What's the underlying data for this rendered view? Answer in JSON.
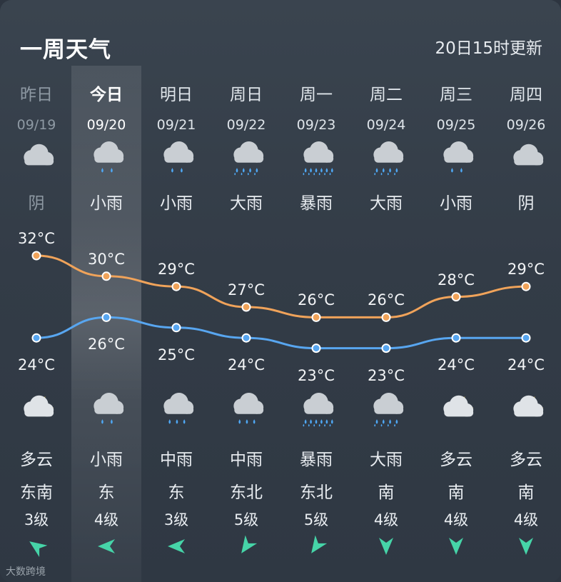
{
  "header": {
    "title": "一周天气",
    "update_time": "20日15时更新"
  },
  "days": [
    {
      "name": "昨日",
      "date": "09/19",
      "day_icon": "cloud-icon",
      "day_cond": "阴",
      "high": "32°C",
      "low": "24°C",
      "night_icon": "cloud-moon-icon",
      "night_cond": "多云",
      "wind_dir": "东南",
      "wind_level": "3级",
      "wind_arrow": "wind-arrow-southeast-icon"
    },
    {
      "name": "今日",
      "date": "09/20",
      "day_icon": "light-rain-icon",
      "day_cond": "小雨",
      "high": "30°C",
      "low": "26°C",
      "night_icon": "light-rain-icon",
      "night_cond": "小雨",
      "wind_dir": "东",
      "wind_level": "4级",
      "wind_arrow": "wind-arrow-east-icon"
    },
    {
      "name": "明日",
      "date": "09/21",
      "day_icon": "light-rain-icon",
      "day_cond": "小雨",
      "high": "29°C",
      "low": "25°C",
      "night_icon": "moderate-rain-icon",
      "night_cond": "中雨",
      "wind_dir": "东",
      "wind_level": "3级",
      "wind_arrow": "wind-arrow-east-icon"
    },
    {
      "name": "周日",
      "date": "09/22",
      "day_icon": "heavy-rain-icon",
      "day_cond": "大雨",
      "high": "27°C",
      "low": "24°C",
      "night_icon": "moderate-rain-icon",
      "night_cond": "中雨",
      "wind_dir": "东北",
      "wind_level": "5级",
      "wind_arrow": "wind-arrow-northeast-icon"
    },
    {
      "name": "周一",
      "date": "09/23",
      "day_icon": "rainstorm-icon",
      "day_cond": "暴雨",
      "high": "26°C",
      "low": "23°C",
      "night_icon": "rainstorm-icon",
      "night_cond": "暴雨",
      "wind_dir": "东北",
      "wind_level": "5级",
      "wind_arrow": "wind-arrow-northeast-icon"
    },
    {
      "name": "周二",
      "date": "09/24",
      "day_icon": "heavy-rain-icon",
      "day_cond": "大雨",
      "high": "26°C",
      "low": "23°C",
      "night_icon": "heavy-rain-icon",
      "night_cond": "大雨",
      "wind_dir": "南",
      "wind_level": "4级",
      "wind_arrow": "wind-arrow-south-icon"
    },
    {
      "name": "周三",
      "date": "09/25",
      "day_icon": "light-rain-icon",
      "day_cond": "小雨",
      "high": "28°C",
      "low": "24°C",
      "night_icon": "cloud-moon-icon",
      "night_cond": "多云",
      "wind_dir": "南",
      "wind_level": "4级",
      "wind_arrow": "wind-arrow-south-icon"
    },
    {
      "name": "周四",
      "date": "09/26",
      "day_icon": "cloud-icon",
      "day_cond": "阴",
      "high": "29°C",
      "low": "24°C",
      "night_icon": "cloud-moon-icon",
      "night_cond": "多云",
      "wind_dir": "南",
      "wind_level": "4级",
      "wind_arrow": "wind-arrow-south-icon"
    }
  ],
  "chart_data": {
    "type": "line",
    "x": [
      "09/19",
      "09/20",
      "09/21",
      "09/22",
      "09/23",
      "09/24",
      "09/25",
      "09/26"
    ],
    "series": [
      {
        "values": [
          32,
          30,
          29,
          27,
          26,
          26,
          28,
          29
        ],
        "color": "#f0a35a"
      },
      {
        "values": [
          24,
          26,
          25,
          24,
          23,
          23,
          24,
          24
        ],
        "color": "#58a6f0"
      }
    ]
  },
  "watermark": "大数跨境"
}
